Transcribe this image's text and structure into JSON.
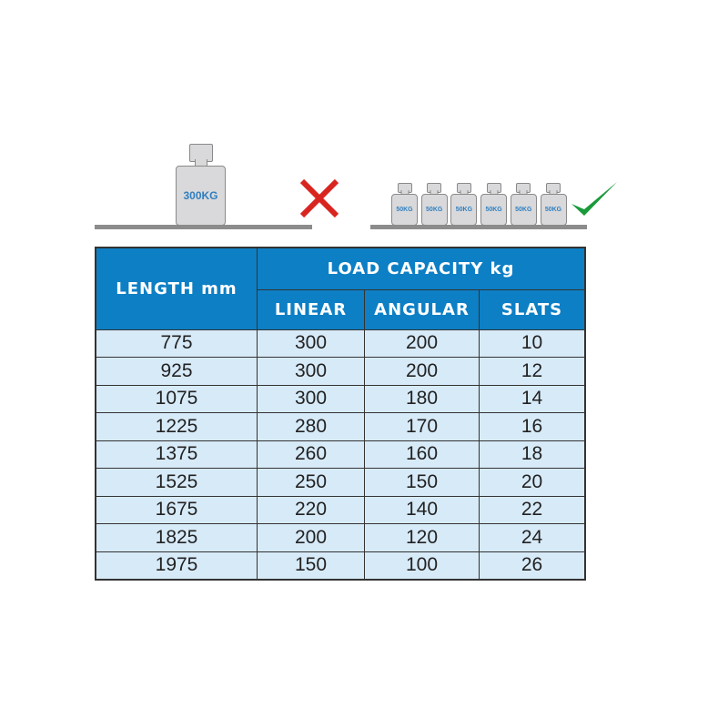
{
  "illustration": {
    "wrong": {
      "weight_label": "300KG",
      "mark_icon": "cross-icon",
      "mark_color": "#d9251f"
    },
    "right": {
      "weight_labels": [
        "50KG",
        "50KG",
        "50KG",
        "50KG",
        "50KG",
        "50KG"
      ],
      "mark_icon": "check-icon",
      "mark_color": "#1a9a3a"
    }
  },
  "table": {
    "header": {
      "length": "LENGTH mm",
      "group": "LOAD CAPACITY kg",
      "columns": [
        "LINEAR",
        "ANGULAR",
        "SLATS"
      ]
    },
    "rows": [
      [
        "775",
        "300",
        "200",
        "10"
      ],
      [
        "925",
        "300",
        "200",
        "12"
      ],
      [
        "1075",
        "300",
        "180",
        "14"
      ],
      [
        "1225",
        "280",
        "170",
        "16"
      ],
      [
        "1375",
        "260",
        "160",
        "18"
      ],
      [
        "1525",
        "250",
        "150",
        "20"
      ],
      [
        "1675",
        "220",
        "140",
        "22"
      ],
      [
        "1825",
        "200",
        "120",
        "24"
      ],
      [
        "1975",
        "150",
        "100",
        "26"
      ]
    ],
    "header_color": "#0d7fc5",
    "cell_color": "#d7eaf8"
  }
}
